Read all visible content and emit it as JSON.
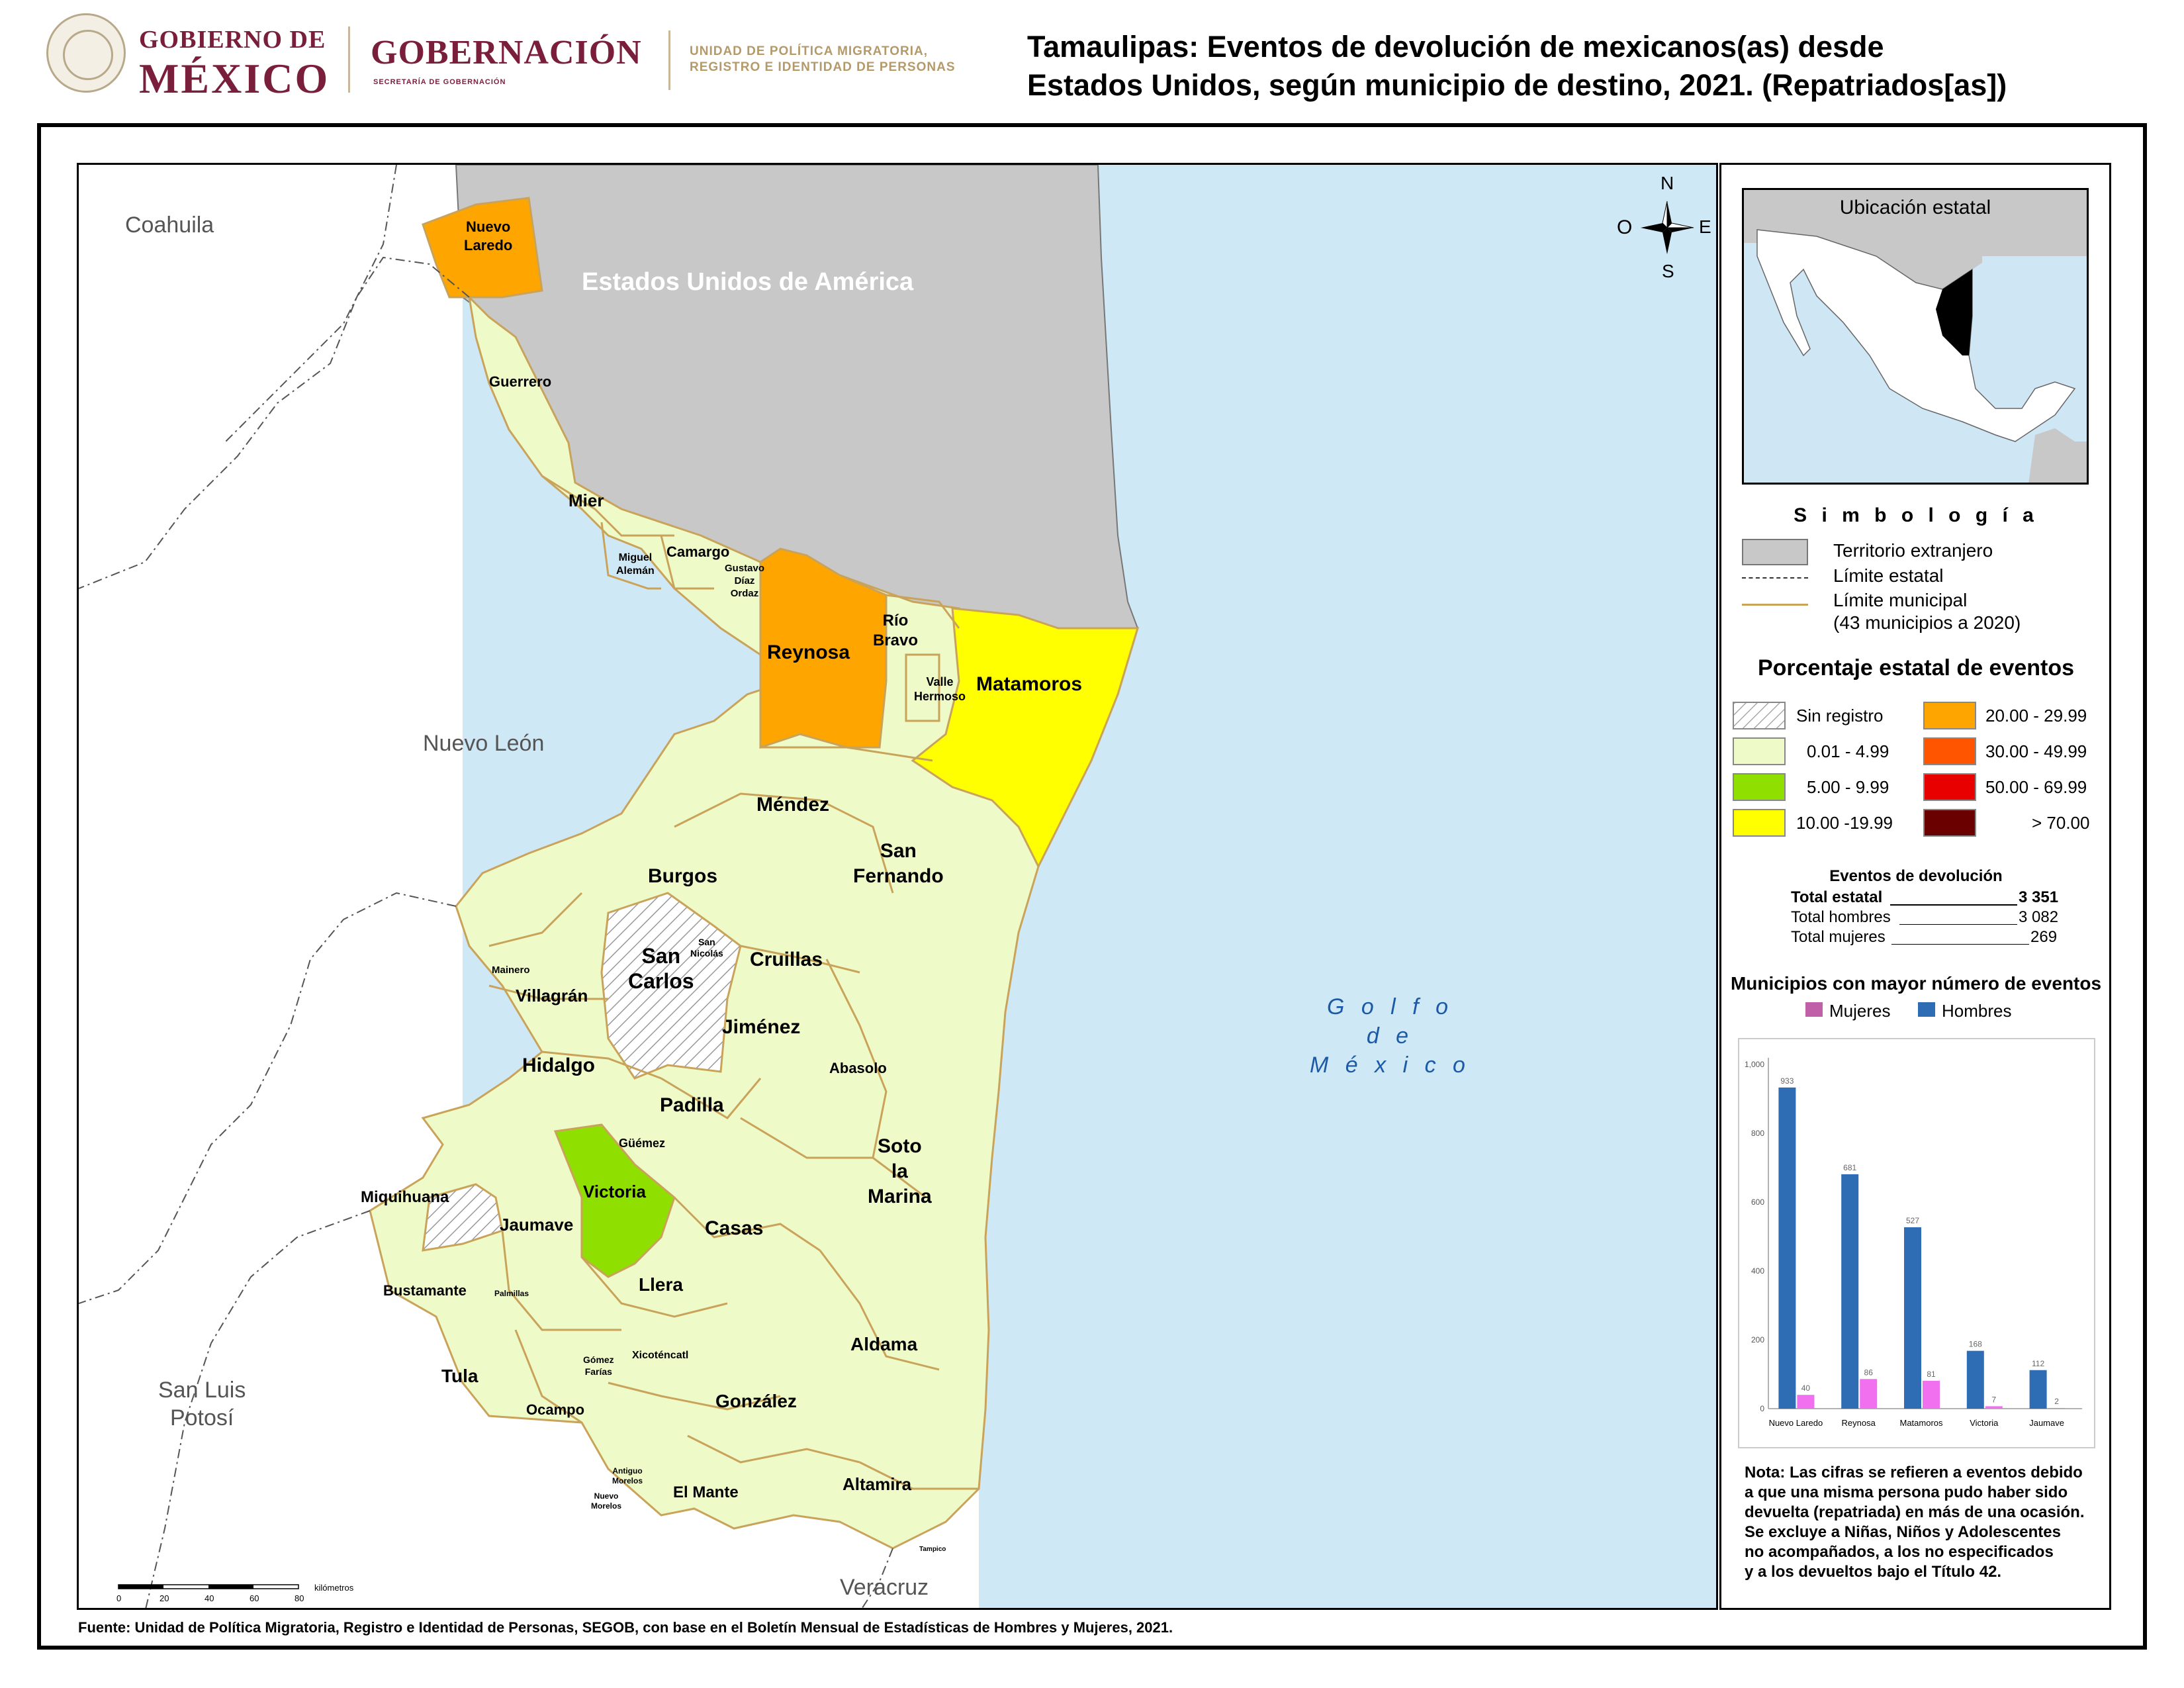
{
  "header": {
    "gob_line1": "GOBIERNO DE",
    "gob_line2": "MÉXICO",
    "gobernacion": "GOBERNACIÓN",
    "secretaria": "SECRETARÍA DE GOBERNACIÓN",
    "upm_line1": "UNIDAD DE POLÍTICA MIGRATORIA,",
    "upm_line2": "REGISTRO E IDENTIDAD DE PERSONAS",
    "title_line1": "Tamaulipas: Eventos de devolución de mexicanos(as) desde",
    "title_line2": "Estados Unidos, según municipio de destino, 2021. (Repatriados[as])"
  },
  "map": {
    "states": {
      "coahuila": "Coahuila",
      "nuevo_leon": "Nuevo León",
      "san_luis_line1": "San Luis",
      "san_luis_line2": "Potosí",
      "veracruz": "Veracruz",
      "usa": "Estados Unidos de América"
    },
    "gulf": [
      "G o l f o",
      "d e",
      "M é x i c o"
    ],
    "compass": {
      "n": "N",
      "s": "S",
      "e": "E",
      "o": "O"
    },
    "municipalities": {
      "nuevo_laredo": [
        "Nuevo",
        "Laredo"
      ],
      "guerrero": "Guerrero",
      "mier": "Mier",
      "miguel_aleman": [
        "Miguel",
        "Alemán"
      ],
      "camargo": "Camargo",
      "gustavo_diaz_ordaz": [
        "Gustavo",
        "Díaz",
        "Ordaz"
      ],
      "reynosa": "Reynosa",
      "rio_bravo": [
        "Río",
        "Bravo"
      ],
      "valle_hermoso": [
        "Valle",
        "Hermoso"
      ],
      "matamoros": "Matamoros",
      "mendez": "Méndez",
      "san_fernando": [
        "San",
        "Fernando"
      ],
      "burgos": "Burgos",
      "san_carlos": [
        "San",
        "Carlos"
      ],
      "san_nicolas": [
        "San",
        "Nicolás"
      ],
      "cruillas": "Cruillas",
      "mainero": "Mainero",
      "villagran": "Villagrán",
      "jimenez": "Jiménez",
      "hidalgo": "Hidalgo",
      "abasolo": "Abasolo",
      "padilla": "Padilla",
      "guemez": "Güémez",
      "victoria": "Victoria",
      "soto_la_marina": [
        "Soto",
        "la",
        "Marina"
      ],
      "miquihuana": "Miquihuana",
      "jaumave": "Jaumave",
      "casas": "Casas",
      "bustamante": "Bustamante",
      "palmillas": "Palmillas",
      "llera": "Llera",
      "tula": "Tula",
      "gomez_farias": [
        "Gómez",
        "Farías"
      ],
      "xicotencatl": "Xicoténcatl",
      "aldama": "Aldama",
      "ocampo": "Ocampo",
      "gonzalez": "González",
      "antiguo_morelos": [
        "Antiguo",
        "Morelos"
      ],
      "nuevo_morelos": [
        "Nuevo",
        "Morelos"
      ],
      "el_mante": "El Mante",
      "altamira": "Altamira",
      "tampico": "Tampico"
    },
    "scale": {
      "ticks": [
        "0",
        "20",
        "40",
        "60",
        "80"
      ],
      "unit": "kilómetros"
    },
    "colors": {
      "foreign": "#c8c8c8",
      "sea": "#cfe8f6",
      "low": "#eefac8",
      "mid": "#8fe000",
      "yellow": "#ffff00",
      "orange": "#ffa500",
      "redorange": "#ff5500",
      "red": "#e80000",
      "darkred": "#6b0000",
      "border": "#c9a35a"
    }
  },
  "inset": {
    "title": "Ubicación estatal"
  },
  "legend": {
    "title": "S i m b o l o g í a",
    "foreign": "Territorio extranjero",
    "state_limit": "Límite estatal",
    "mun_limit_line1": "Límite municipal",
    "mun_limit_line2": "(43 municipios a 2020)",
    "pct_title": "Porcentaje estatal de eventos",
    "classes": [
      {
        "label": "Sin registro",
        "color": "hatch"
      },
      {
        "label": "0.01  - 4.99",
        "color": "#eefac8"
      },
      {
        "label": "5.00  - 9.99",
        "color": "#8fe000"
      },
      {
        "label": "10.00 -19.99",
        "color": "#ffff00"
      },
      {
        "label": "20.00 - 29.99",
        "color": "#ffa500"
      },
      {
        "label": "30.00 - 49.99",
        "color": "#ff5500"
      },
      {
        "label": "50.00 - 69.99",
        "color": "#e80000"
      },
      {
        "label": "> 70.00",
        "color": "#6b0000"
      }
    ]
  },
  "events": {
    "title": "Eventos de devolución",
    "total_label": "Total estatal",
    "total_value": "3 351",
    "men_label": "Total hombres",
    "men_value": "3 082",
    "women_label": "Total mujeres",
    "women_value": "269"
  },
  "chart_data": {
    "type": "bar",
    "title": "Municipios con mayor número de eventos",
    "categories": [
      "Nuevo Laredo",
      "Reynosa",
      "Matamoros",
      "Victoria",
      "Jaumave"
    ],
    "series": [
      {
        "name": "Hombres",
        "values": [
          933,
          681,
          527,
          168,
          112
        ],
        "color": "#2e6db4"
      },
      {
        "name": "Mujeres",
        "values": [
          40,
          86,
          81,
          7,
          2
        ],
        "color": "#f070f0"
      }
    ],
    "legend_order": [
      "Mujeres",
      "Hombres"
    ],
    "legend_colors": {
      "Mujeres": "#c060a8",
      "Hombres": "#2e6db4"
    },
    "ylim": [
      0,
      1000
    ],
    "yticks": [
      "0",
      "200",
      "400",
      "600",
      "800",
      "1,000"
    ],
    "legend_position": "top"
  },
  "note": {
    "lines": [
      "Nota: Las cifras se refieren a eventos debido",
      "a que una misma persona pudo haber sido",
      "devuelta (repatriada) en más de una ocasión.",
      "Se excluye a Niñas, Niños y Adolescentes",
      "no acompañados, a los no especificados",
      "y a los devueltos bajo el Título 42."
    ]
  },
  "source": "Fuente: Unidad de Política Migratoria, Registro e Identidad de Personas, SEGOB, con base en el Boletín Mensual de Estadísticas de Hombres y Mujeres, 2021."
}
